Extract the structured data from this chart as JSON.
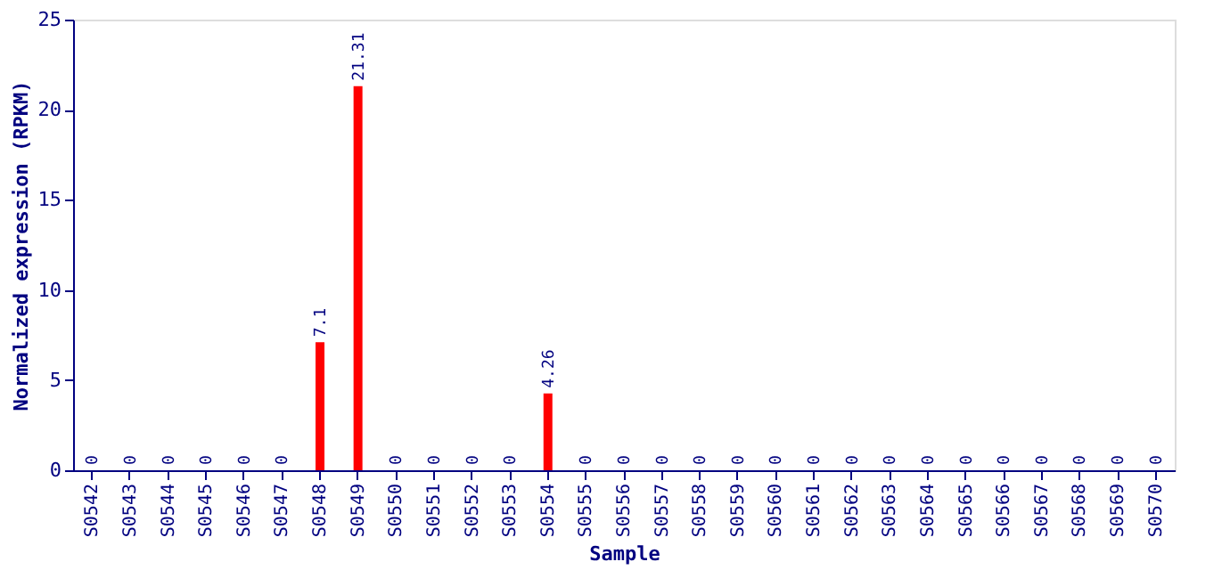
{
  "chart_data": {
    "type": "bar",
    "xlabel": "Sample",
    "ylabel": "Normalized expression (RPKM)",
    "categories": [
      "S0542",
      "S0543",
      "S0544",
      "S0545",
      "S0546",
      "S0547",
      "S0548",
      "S0549",
      "S0550",
      "S0551",
      "S0552",
      "S0553",
      "S0554",
      "S0555",
      "S0556",
      "S0557",
      "S0558",
      "S0559",
      "S0560",
      "S0561",
      "S0562",
      "S0563",
      "S0564",
      "S0565",
      "S0566",
      "S0567",
      "S0568",
      "S0569",
      "S0570"
    ],
    "values": [
      0,
      0,
      0,
      0,
      0,
      0,
      7.1,
      21.31,
      0,
      0,
      0,
      0,
      4.26,
      0,
      0,
      0,
      0,
      0,
      0,
      0,
      0,
      0,
      0,
      0,
      0,
      0,
      0,
      0,
      0
    ],
    "color": "#ff0000",
    "ylim": [
      0,
      25
    ],
    "yticks": [
      0,
      5,
      10,
      15,
      20,
      25
    ],
    "grid": false,
    "data_labels": true
  }
}
